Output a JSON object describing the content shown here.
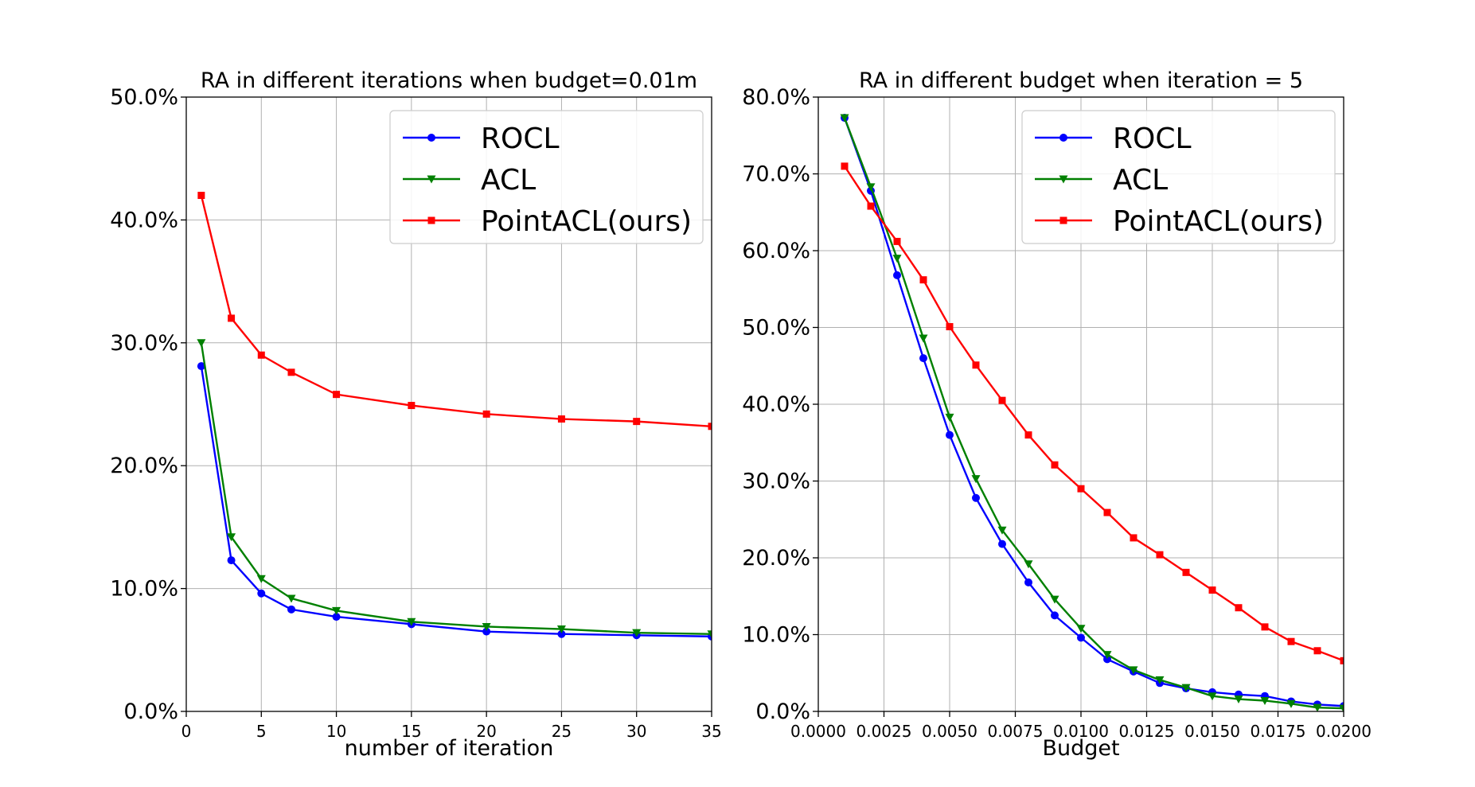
{
  "chart_data": [
    {
      "type": "line",
      "title": "RA in different iterations when budget=0.01m",
      "xlabel": "number of iteration",
      "ylabel": "",
      "xlim": [
        0,
        35
      ],
      "ylim": [
        0,
        50
      ],
      "xticks": [
        0,
        5,
        10,
        15,
        20,
        25,
        30,
        35
      ],
      "xtick_labels": [
        "0",
        "5",
        "10",
        "15",
        "20",
        "25",
        "30",
        "35"
      ],
      "yticks": [
        0,
        10,
        20,
        30,
        40,
        50
      ],
      "ytick_labels": [
        "0.0%",
        "10.0%",
        "20.0%",
        "30.0%",
        "40.0%",
        "50.0%"
      ],
      "grid": true,
      "legend_position": "top-right",
      "x": [
        1,
        3,
        5,
        7,
        10,
        15,
        20,
        25,
        30,
        35
      ],
      "series": [
        {
          "name": "ROCL",
          "color": "#0000ff",
          "marker": "circle",
          "values": [
            28.1,
            12.3,
            9.6,
            8.3,
            7.7,
            7.1,
            6.5,
            6.3,
            6.2,
            6.1
          ]
        },
        {
          "name": "ACL",
          "color": "#008000",
          "marker": "triangle-down",
          "values": [
            30.0,
            14.2,
            10.8,
            9.2,
            8.2,
            7.3,
            6.9,
            6.7,
            6.4,
            6.3
          ]
        },
        {
          "name": "PointACL(ours)",
          "color": "#ff0000",
          "marker": "square",
          "values": [
            42.0,
            32.0,
            29.0,
            27.6,
            25.8,
            24.9,
            24.2,
            23.8,
            23.6,
            23.2
          ]
        }
      ]
    },
    {
      "type": "line",
      "title": "RA in different budget when iteration = 5",
      "xlabel": "Budget",
      "ylabel": "",
      "xlim": [
        0,
        0.02
      ],
      "ylim": [
        0,
        80
      ],
      "xticks": [
        0,
        0.0025,
        0.005,
        0.0075,
        0.01,
        0.0125,
        0.015,
        0.0175,
        0.02
      ],
      "xtick_labels": [
        "0.0000",
        "0.0025",
        "0.0050",
        "0.0075",
        "0.0100",
        "0.0125",
        "0.0150",
        "0.0175",
        "0.0200"
      ],
      "yticks": [
        0,
        10,
        20,
        30,
        40,
        50,
        60,
        70,
        80
      ],
      "ytick_labels": [
        "0.0%",
        "10.0%",
        "20.0%",
        "30.0%",
        "40.0%",
        "50.0%",
        "60.0%",
        "70.0%",
        "80.0%"
      ],
      "grid": true,
      "legend_position": "top-right",
      "x": [
        0.001,
        0.002,
        0.003,
        0.004,
        0.005,
        0.006,
        0.007,
        0.008,
        0.009,
        0.01,
        0.011,
        0.012,
        0.013,
        0.014,
        0.015,
        0.016,
        0.017,
        0.018,
        0.019,
        0.02
      ],
      "series": [
        {
          "name": "ROCL",
          "color": "#0000ff",
          "marker": "circle",
          "values": [
            77.3,
            67.8,
            56.8,
            46.0,
            36.0,
            27.8,
            21.8,
            16.8,
            12.5,
            9.6,
            6.8,
            5.2,
            3.7,
            3.0,
            2.5,
            2.2,
            2.0,
            1.3,
            0.9,
            0.7
          ]
        },
        {
          "name": "ACL",
          "color": "#008000",
          "marker": "triangle-down",
          "values": [
            77.3,
            68.3,
            59.0,
            48.6,
            38.3,
            30.3,
            23.6,
            19.2,
            14.6,
            10.8,
            7.4,
            5.4,
            4.1,
            3.1,
            2.0,
            1.6,
            1.4,
            1.0,
            0.5,
            0.4
          ]
        },
        {
          "name": "PointACL(ours)",
          "color": "#ff0000",
          "marker": "square",
          "values": [
            71.0,
            65.8,
            61.2,
            56.2,
            50.1,
            45.1,
            40.5,
            36.0,
            32.1,
            29.0,
            25.9,
            22.6,
            20.4,
            18.1,
            15.8,
            13.5,
            11.0,
            9.1,
            7.9,
            6.6
          ]
        }
      ]
    }
  ]
}
